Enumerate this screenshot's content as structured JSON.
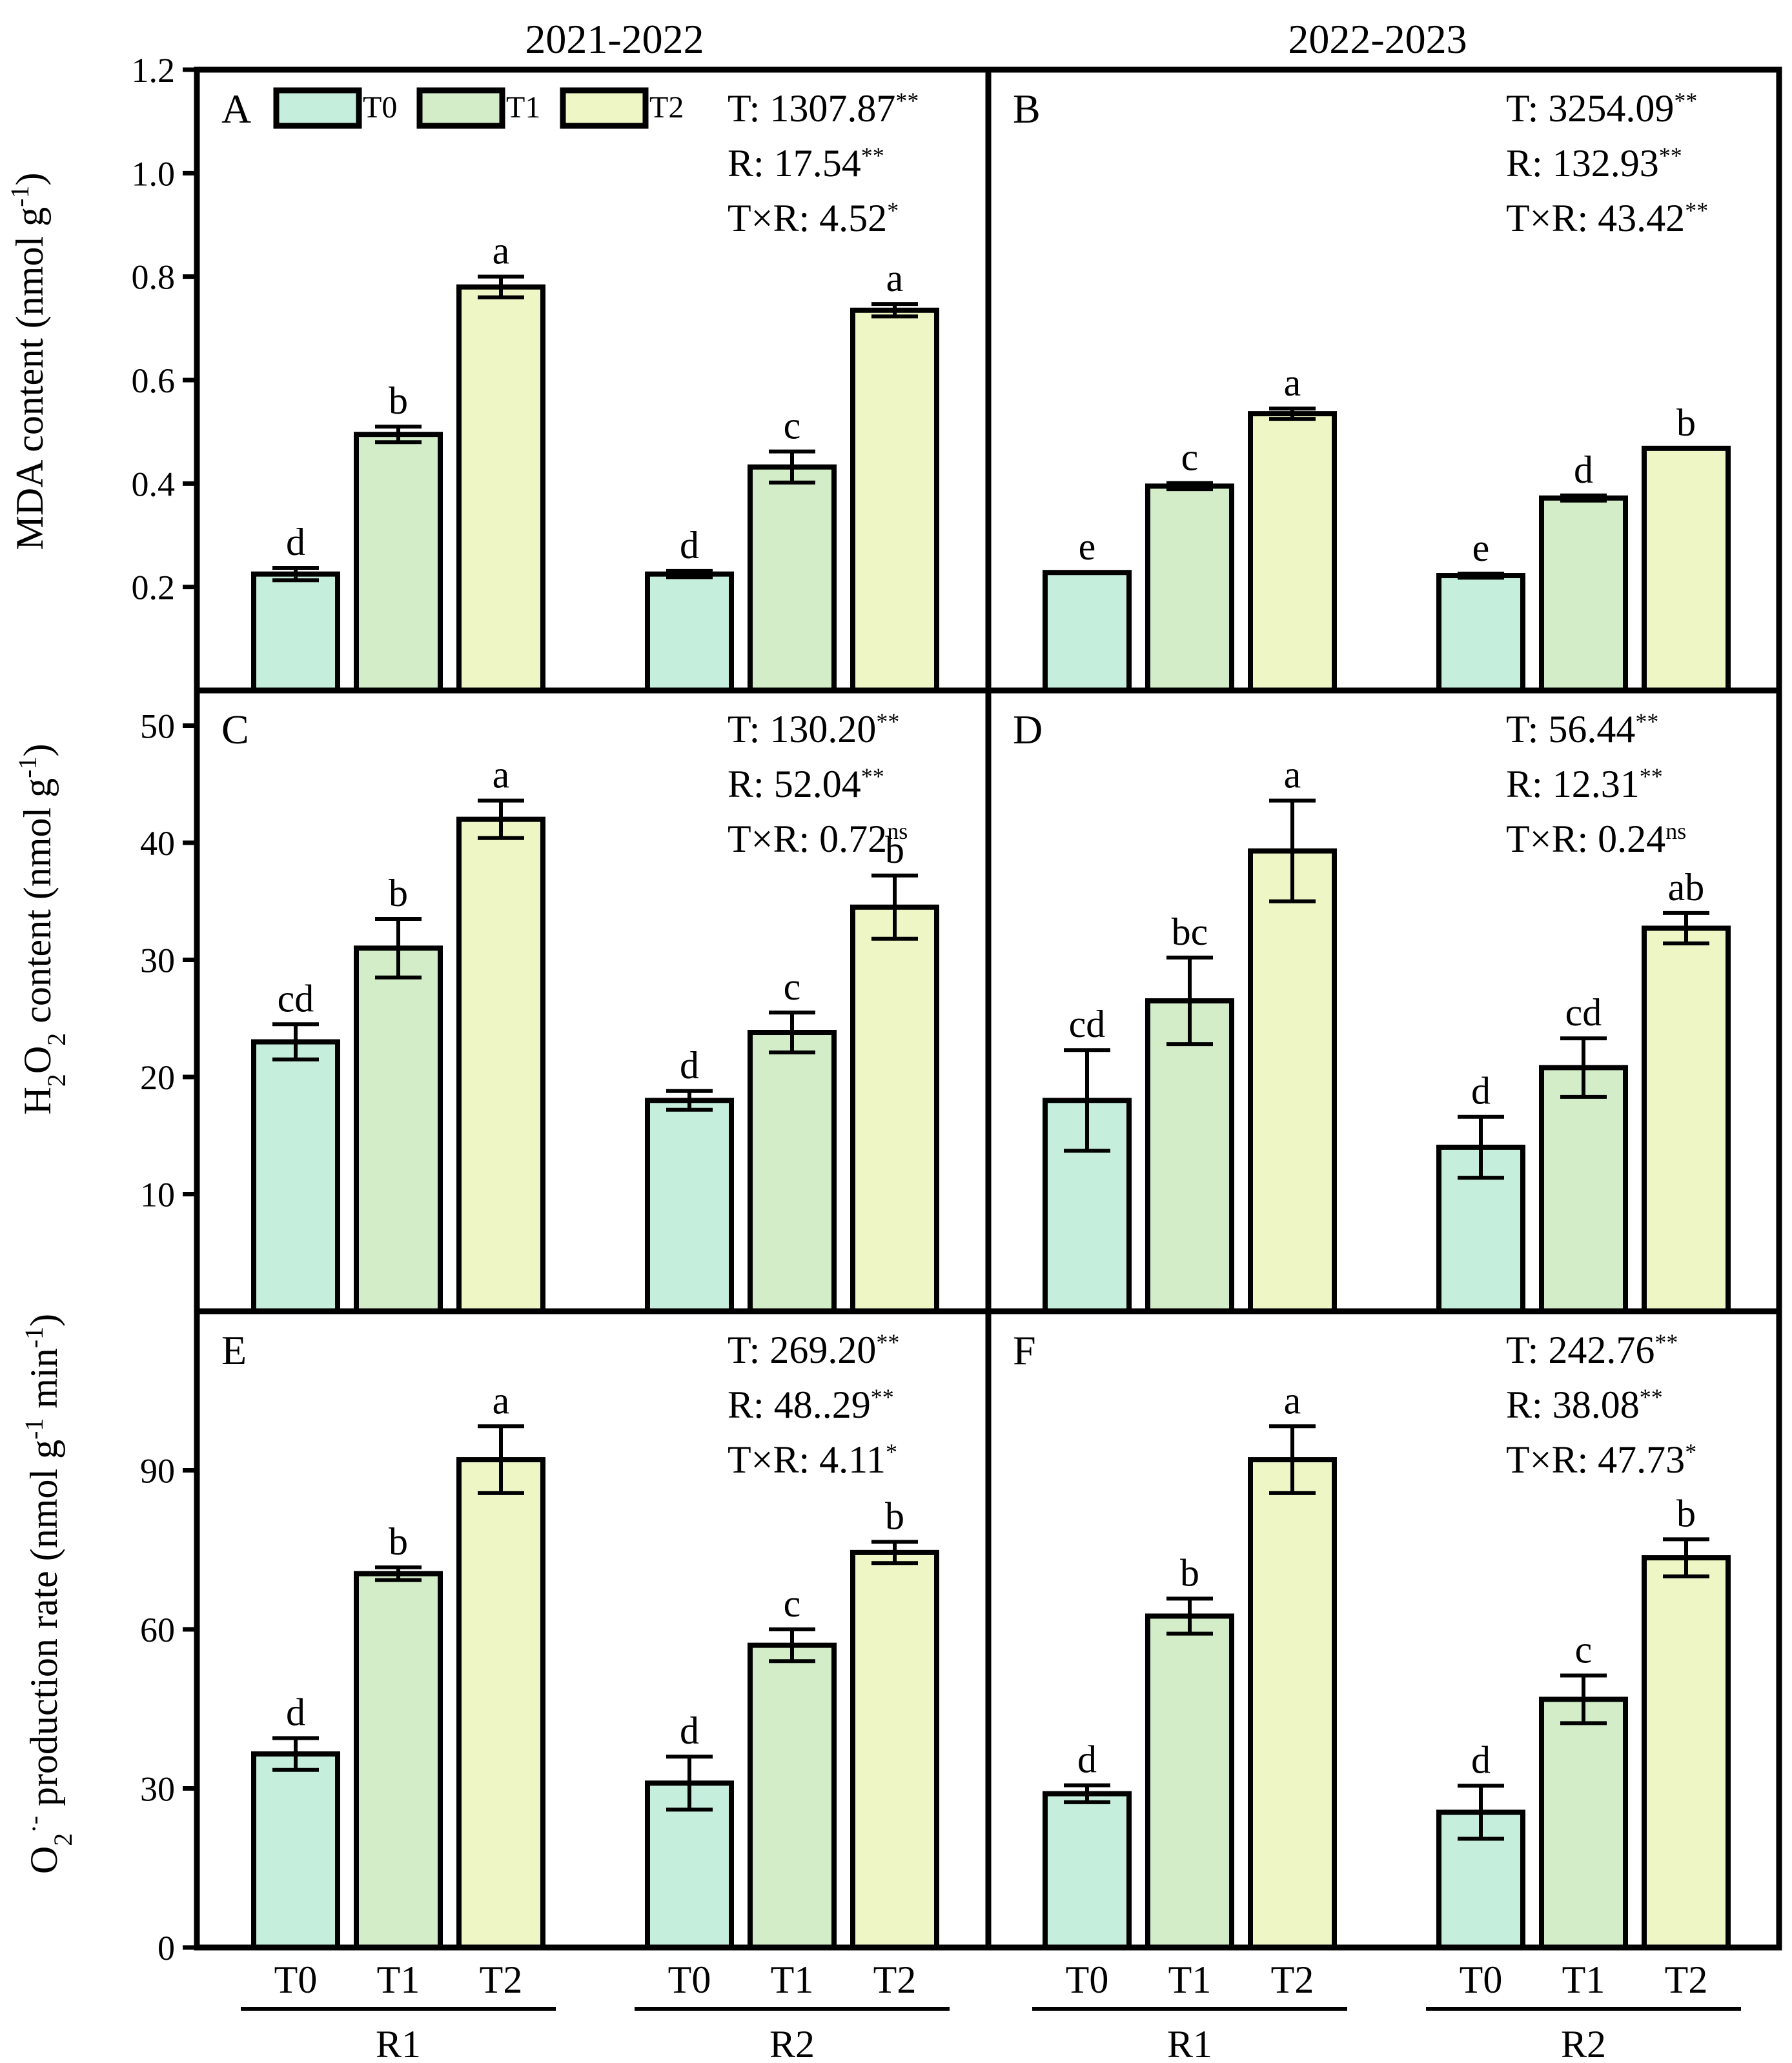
{
  "figure": {
    "column_titles": [
      "2021-2022",
      "2022-2023"
    ],
    "group_labels": [
      "R1",
      "R2"
    ],
    "x_tick_labels": [
      "T0",
      "T1",
      "T2"
    ],
    "legend": {
      "entries": [
        "T0",
        "T1",
        "T2"
      ]
    },
    "colors": {
      "T0": "#c6eedc",
      "T1": "#d4edc9",
      "T2": "#eef6c6",
      "frame": "#000000"
    }
  },
  "chart_data": [
    {
      "type": "bar",
      "panel": "A",
      "column": 0,
      "row": 0,
      "ylabel": "MDA content (nmol g-1)",
      "ylim": [
        0,
        1.2
      ],
      "yticks": [
        0.2,
        0.4,
        0.6,
        0.8,
        1.0,
        1.2
      ],
      "ytick_labels": [
        "0.2",
        "0.4",
        "0.6",
        "0.8",
        "1.0",
        "1.2"
      ],
      "groups": [
        "R1",
        "R2"
      ],
      "series": [
        "T0",
        "T1",
        "T2"
      ],
      "values": [
        [
          0.225,
          0.495,
          0.78
        ],
        [
          0.225,
          0.432,
          0.735
        ]
      ],
      "errors": [
        [
          0.012,
          0.015,
          0.02
        ],
        [
          0.006,
          0.03,
          0.012
        ]
      ],
      "letters": [
        [
          "d",
          "b",
          "a"
        ],
        [
          "d",
          "c",
          "a"
        ]
      ],
      "stats": [
        {
          "label": "T: 1307.87",
          "sig": "**"
        },
        {
          "label": "R: 17.54",
          "sig": "**"
        },
        {
          "label": "T×R: 4.52",
          "sig": "*"
        }
      ]
    },
    {
      "type": "bar",
      "panel": "B",
      "column": 1,
      "row": 0,
      "ylim": [
        0,
        1.2
      ],
      "groups": [
        "R1",
        "R2"
      ],
      "series": [
        "T0",
        "T1",
        "T2"
      ],
      "values": [
        [
          0.228,
          0.395,
          0.535
        ],
        [
          0.222,
          0.372,
          0.468
        ]
      ],
      "errors": [
        [
          0.0,
          0.006,
          0.01
        ],
        [
          0.004,
          0.005,
          0.0
        ]
      ],
      "letters": [
        [
          "e",
          "c",
          "a"
        ],
        [
          "e",
          "d",
          "b"
        ]
      ],
      "stats": [
        {
          "label": "T: 3254.09",
          "sig": "**"
        },
        {
          "label": "R: 132.93",
          "sig": "**"
        },
        {
          "label": "T×R: 43.42",
          "sig": "**"
        }
      ]
    },
    {
      "type": "bar",
      "panel": "C",
      "column": 0,
      "row": 1,
      "ylabel": "H2O2 content (nmol g-1)",
      "ylim": [
        0,
        53
      ],
      "yticks": [
        10,
        20,
        30,
        40,
        50
      ],
      "ytick_labels": [
        "10",
        "20",
        "30",
        "40",
        "50"
      ],
      "groups": [
        "R1",
        "R2"
      ],
      "series": [
        "T0",
        "T1",
        "T2"
      ],
      "values": [
        [
          23.0,
          31.0,
          42.0
        ],
        [
          18.0,
          23.8,
          34.5
        ]
      ],
      "errors": [
        [
          1.5,
          2.5,
          1.6
        ],
        [
          0.8,
          1.7,
          2.7
        ]
      ],
      "letters": [
        [
          "cd",
          "b",
          "a"
        ],
        [
          "d",
          "c",
          "b"
        ]
      ],
      "stats": [
        {
          "label": "T: 130.20",
          "sig": "**"
        },
        {
          "label": "R: 52.04",
          "sig": "**"
        },
        {
          "label": "T×R: 0.72",
          "sig": "ns"
        }
      ]
    },
    {
      "type": "bar",
      "panel": "D",
      "column": 1,
      "row": 1,
      "ylim": [
        0,
        53
      ],
      "groups": [
        "R1",
        "R2"
      ],
      "series": [
        "T0",
        "T1",
        "T2"
      ],
      "values": [
        [
          18.0,
          26.5,
          39.3
        ],
        [
          14.0,
          20.8,
          32.7
        ]
      ],
      "errors": [
        [
          4.3,
          3.7,
          4.3
        ],
        [
          2.6,
          2.5,
          1.3
        ]
      ],
      "letters": [
        [
          "cd",
          "bc",
          "a"
        ],
        [
          "d",
          "cd",
          "ab"
        ]
      ],
      "stats": [
        {
          "label": "T: 56.44",
          "sig": "**"
        },
        {
          "label": "R: 12.31",
          "sig": "**"
        },
        {
          "label": "T×R: 0.24",
          "sig": "ns"
        }
      ]
    },
    {
      "type": "bar",
      "panel": "E",
      "column": 0,
      "row": 2,
      "ylabel": "O2·- production rate (nmol g-1 min-1)",
      "ylim": [
        0,
        120
      ],
      "yticks": [
        0,
        30,
        60,
        90
      ],
      "ytick_labels": [
        "0",
        "30",
        "60",
        "90"
      ],
      "groups": [
        "R1",
        "R2"
      ],
      "series": [
        "T0",
        "T1",
        "T2"
      ],
      "values": [
        [
          36.5,
          70.5,
          92.0
        ],
        [
          31.0,
          57.0,
          74.5
        ]
      ],
      "errors": [
        [
          3.0,
          1.2,
          6.3
        ],
        [
          5.0,
          3.0,
          2.0
        ]
      ],
      "letters": [
        [
          "d",
          "b",
          "a"
        ],
        [
          "d",
          "c",
          "b"
        ]
      ],
      "stats": [
        {
          "label": "T: 269.20",
          "sig": "**"
        },
        {
          "label": "R: 48..29",
          "sig": "**"
        },
        {
          "label": "T×R: 4.11",
          "sig": "*"
        }
      ]
    },
    {
      "type": "bar",
      "panel": "F",
      "column": 1,
      "row": 2,
      "ylim": [
        0,
        120
      ],
      "groups": [
        "R1",
        "R2"
      ],
      "series": [
        "T0",
        "T1",
        "T2"
      ],
      "values": [
        [
          29.0,
          62.5,
          92.0
        ],
        [
          25.5,
          46.8,
          73.5
        ]
      ],
      "errors": [
        [
          1.6,
          3.3,
          6.3
        ],
        [
          5.0,
          4.5,
          3.5
        ]
      ],
      "letters": [
        [
          "d",
          "b",
          "a"
        ],
        [
          "d",
          "c",
          "b"
        ]
      ],
      "stats": [
        {
          "label": "T: 242.76",
          "sig": "**"
        },
        {
          "label": "R: 38.08",
          "sig": "**"
        },
        {
          "label": "T×R: 47.73",
          "sig": "*"
        }
      ]
    }
  ]
}
